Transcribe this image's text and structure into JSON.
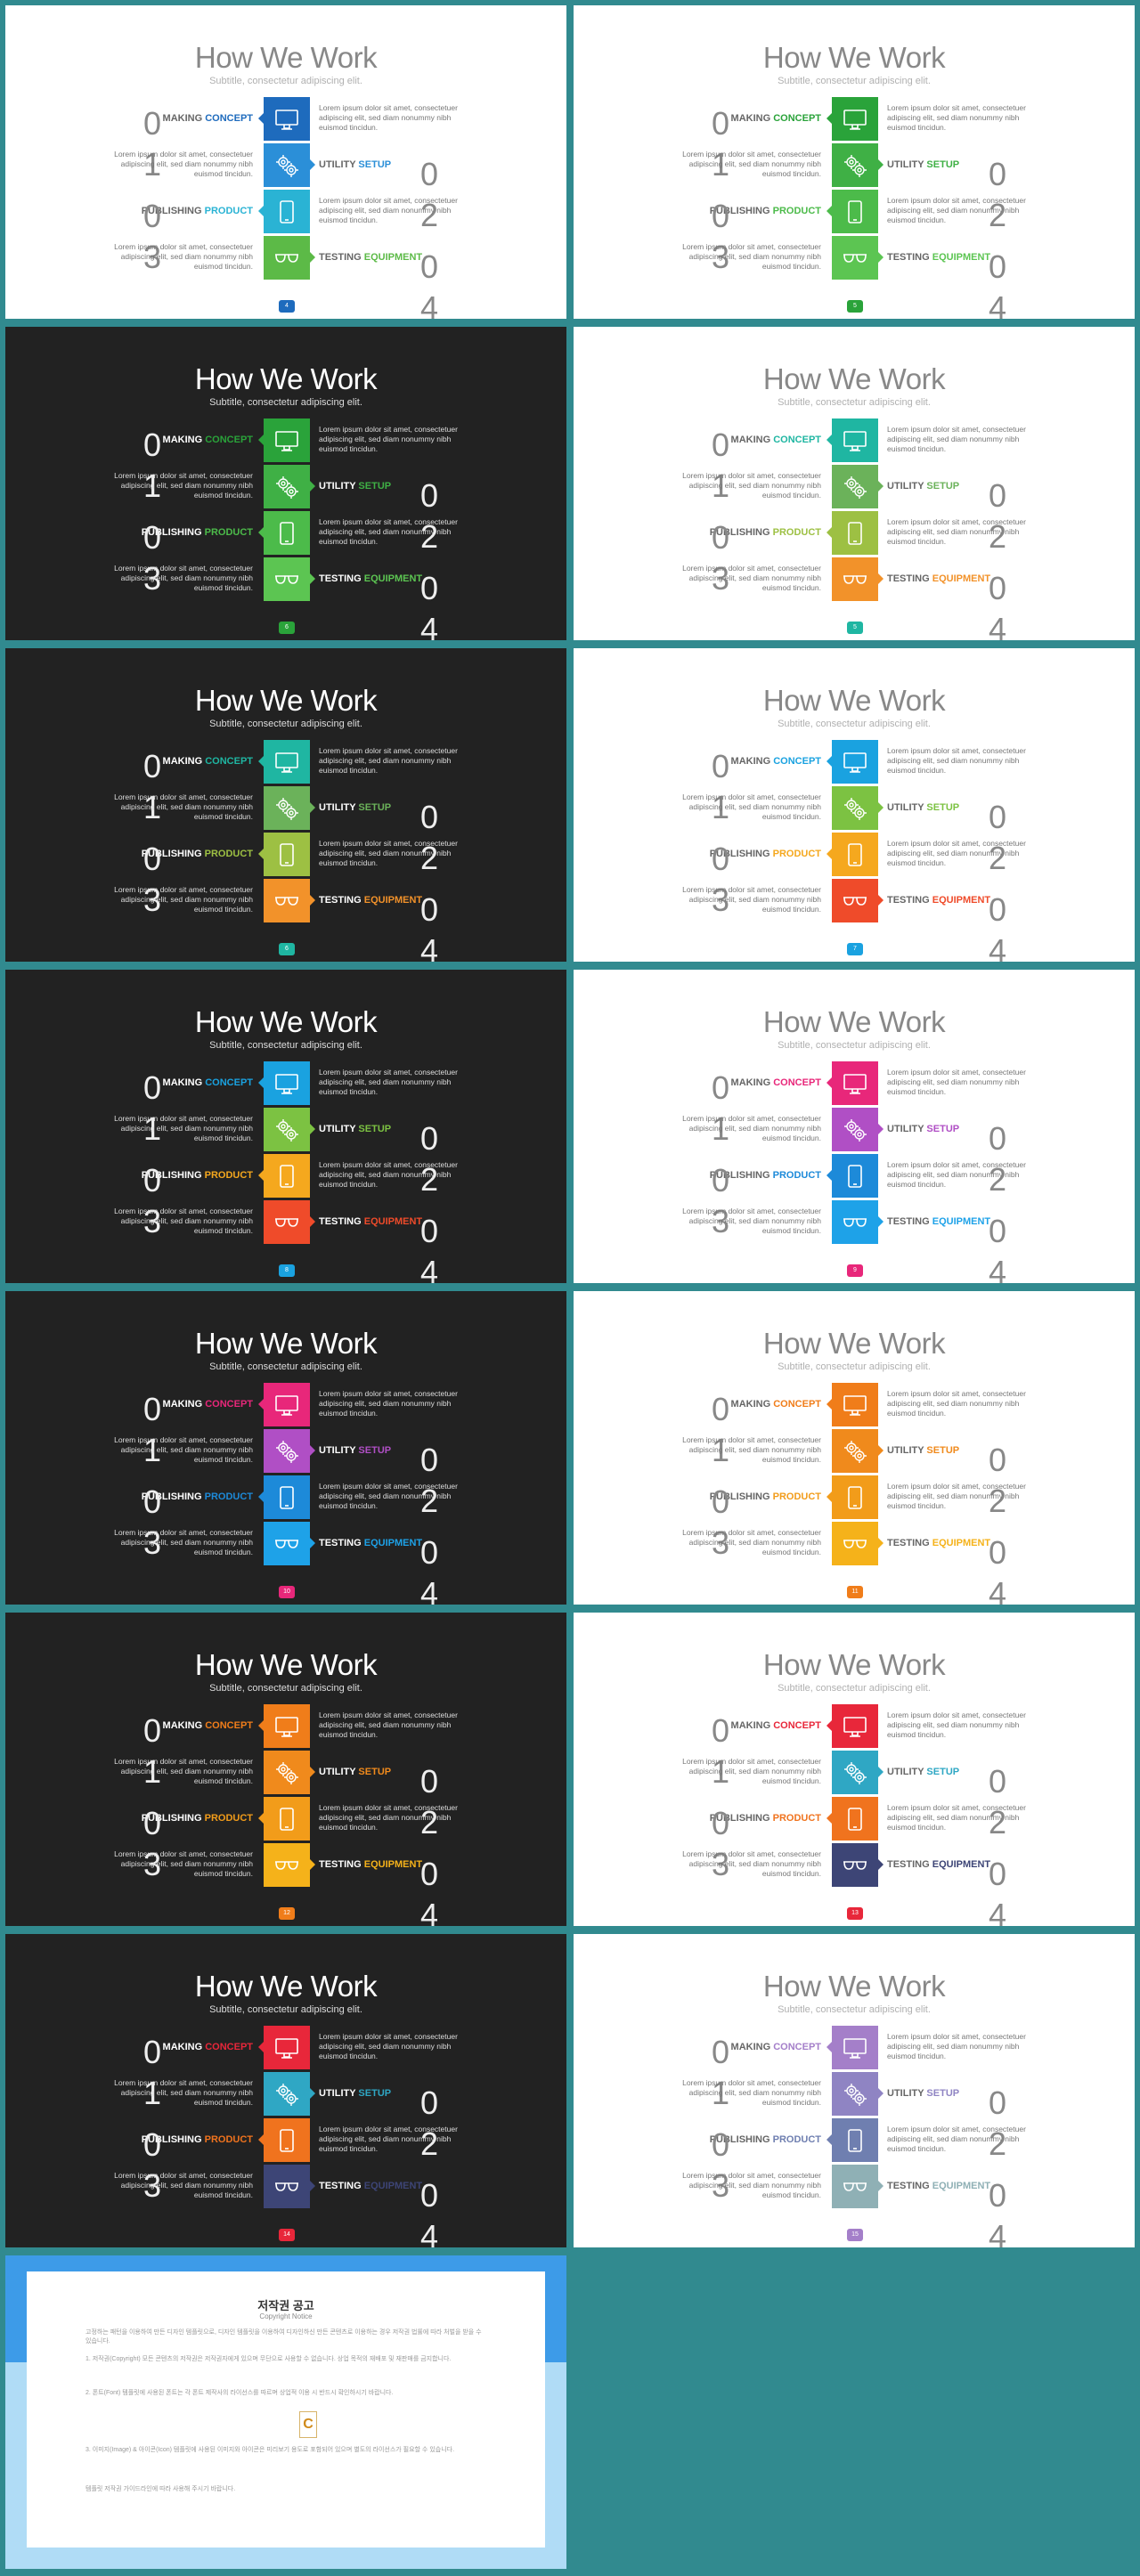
{
  "slides": [
    {
      "theme": "light",
      "page": "4",
      "colors": [
        "#1e6bbd",
        "#2b8fd8",
        "#2ab3d4",
        "#5cba47"
      ]
    },
    {
      "theme": "light",
      "page": "5",
      "colors": [
        "#2aa33a",
        "#3fb045",
        "#4cbb4a",
        "#5cc552"
      ]
    },
    {
      "theme": "dark",
      "page": "6",
      "colors": [
        "#2aa33a",
        "#3fb045",
        "#4cbb4a",
        "#5cc552"
      ]
    },
    {
      "theme": "light",
      "page": "5",
      "colors": [
        "#1fb6a2",
        "#6bb25a",
        "#9dc043",
        "#f2922a"
      ]
    },
    {
      "theme": "dark",
      "page": "6",
      "colors": [
        "#1fb6a2",
        "#6bb25a",
        "#9dc043",
        "#f2922a"
      ]
    },
    {
      "theme": "light",
      "page": "7",
      "colors": [
        "#1aa2e0",
        "#7cc242",
        "#f5a81e",
        "#ef4b2a"
      ]
    },
    {
      "theme": "dark",
      "page": "8",
      "colors": [
        "#1aa2e0",
        "#7cc242",
        "#f5a81e",
        "#ef4b2a"
      ]
    },
    {
      "theme": "light",
      "page": "9",
      "colors": [
        "#e8277a",
        "#b04fc5",
        "#1d8ad9",
        "#1ea2e8"
      ]
    },
    {
      "theme": "dark",
      "page": "10",
      "colors": [
        "#e8277a",
        "#b04fc5",
        "#1d8ad9",
        "#1ea2e8"
      ]
    },
    {
      "theme": "light",
      "page": "11",
      "colors": [
        "#f07d1a",
        "#f08a1c",
        "#f29c1a",
        "#f5b21a"
      ]
    },
    {
      "theme": "dark",
      "page": "12",
      "colors": [
        "#f07d1a",
        "#f08a1c",
        "#f29c1a",
        "#f5b21a"
      ]
    },
    {
      "theme": "light",
      "page": "13",
      "colors": [
        "#e8273a",
        "#2fa7c4",
        "#f0731e",
        "#3d4576"
      ]
    },
    {
      "theme": "dark",
      "page": "14",
      "colors": [
        "#e8273a",
        "#2fa7c4",
        "#f0731e",
        "#3d4576"
      ]
    },
    {
      "theme": "light",
      "page": "15",
      "colors": [
        "#a47fc9",
        "#8f84c3",
        "#6f7fb0",
        "#8fb0b5"
      ]
    }
  ],
  "content": {
    "title": "How We Work",
    "subtitle": "Subtitle, consectetur adipiscing elit.",
    "items": [
      {
        "w1": "MAKING",
        "w2": "CONCEPT",
        "num": "01",
        "icon": "monitor-icon"
      },
      {
        "w1": "UTILITY",
        "w2": "SETUP",
        "num": "02",
        "icon": "gears-icon"
      },
      {
        "w1": "PUBLISHING",
        "w2": "PRODUCT",
        "num": "03",
        "icon": "tablet-icon"
      },
      {
        "w1": "TESTING",
        "w2": "EQUIPMENT",
        "num": "04",
        "icon": "glasses-icon"
      }
    ],
    "desc": "Lorem ipsum dolor sit amet, consectetuer adipiscing elit, sed diam nonummy nibh euismod tincidun."
  },
  "notice": {
    "title": "저작권 공고",
    "subtitle": "Copyright Notice",
    "logo": "C",
    "paragraphs": [
      "고정하는 패턴을 이용하여 만든 디자인 템플릿으로, 디자인 템플릿을 이용하여 디자인하신 만든 콘텐츠로 이용하는 경우 저작권 법률에 따라 처벌을 받을 수 있습니다.",
      "1. 저작권(Copyright) 모든 콘텐츠의 저작권은 저작권자에게 있으며 무단으로 사용할 수 없습니다. 상업 목적의 재배포 및 재판매를 금지합니다.",
      "2. 폰트(Font) 템플릿에 사용된 폰트는 각 폰트 제작사의 라이선스를 따르며 상업적 이용 시 반드시 확인하시기 바랍니다.",
      "3. 이미지(Image) & 아이콘(Icon) 템플릿에 사용된 이미지와 아이콘은 미리보기 용도로 포함되어 있으며 별도의 라이선스가 필요할 수 있습니다.",
      "템플릿 저작권 가이드라인에 따라 사용해 주시기 바랍니다."
    ]
  }
}
